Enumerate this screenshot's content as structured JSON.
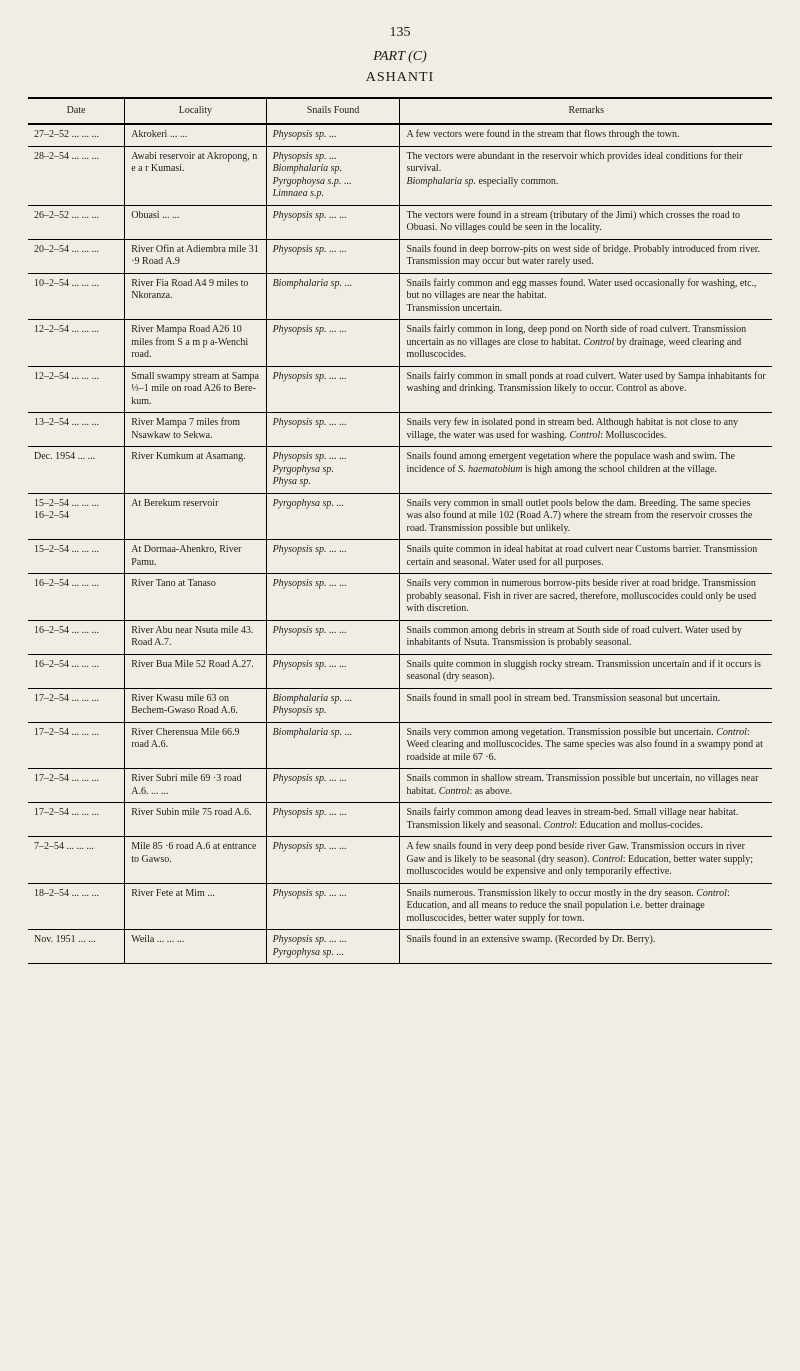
{
  "page_number": "135",
  "part_title": "PART (C)",
  "section_title": "ASHANTI",
  "headers": {
    "date": "Date",
    "locality": "Locality",
    "snails": "Snails Found",
    "remarks": "Remarks"
  },
  "rows": [
    {
      "date": "27–2–52 ...   ...   ...",
      "locality": "Akrokeri   ...   ...",
      "snails_html": "<span class='italic'>Physopsis sp.</span>   ...",
      "remarks": "A few vectors were found in the stream that flows through the town."
    },
    {
      "date": "28–2–54 ...   ...   ...",
      "locality": "Awabi reservoir at Akropong, n e a r Kumasi.",
      "snails_html": "<span class='italic'>Physopsis sp.</span> ...<br><span class='italic'>Biomphalaria sp.</span><br><span class='italic'>Pyrgophoysa s.p.</span> ...<br><span class='italic'>Limnaea s.p.</span>",
      "remarks_html": "The vectors were abundant in the reservoir which provides ideal conditions for their survival.<br><span class='italic'>Biomphalaria sp.</span> especially common."
    },
    {
      "date": "26–2–52 ...   ...   ...",
      "locality": "Obuasi   ...   ...",
      "snails_html": "<span class='italic'>Physopsis sp.</span> ...   ...",
      "remarks": "The vectors were found in a stream (tributary of the Jimi) which crosses the road to Obuasi. No villages could be seen in the locality."
    },
    {
      "date": "20–2–54 ...   ...   ...",
      "locality": "River Ofin at Adiembra mile 31 ·9 Road A.9",
      "snails_html": "<span class='italic'>Physopsis sp.</span> ...   ...",
      "remarks": "Snails found in deep borrow-pits on west side of bridge. Probably introduced from river. Transmission may occur but water rarely used."
    },
    {
      "date": "10–2–54 ...   ...   ...",
      "locality": "River Fia Road A4 9 miles to Nkoranza.",
      "snails_html": "<span class='italic'>Biomphalaria sp.</span>   ...",
      "remarks": "Snails fairly common and egg masses found. Water used occasionally for washing, etc., but no villages are near the habitat.\nTransmission uncertain."
    },
    {
      "date": "12–2–54 ...   ...   ...",
      "locality": "River Mampa Road A26 10 miles from S a m p a-Wenchi road.",
      "snails_html": "<span class='italic'>Physopsis sp.</span> ...   ...",
      "remarks_html": "Snails fairly common in long, deep pond on North side of road culvert. Transmission uncertain as no villages are close to habitat. <span class='italic'>Control</span> by drainage, weed clearing and molluscocides."
    },
    {
      "date": "12–2–54 ...   ...   ...",
      "locality": "Small swampy stream at Sampa ⅓–1 mile on road A26 to Bere-kum.",
      "snails_html": "<span class='italic'>Physopsis sp.</span> ...   ...",
      "remarks": "Snails fairly common in small ponds at road culvert. Water used by Sampa inhabitants for washing and drinking. Transmission likely to occur. Control as above."
    },
    {
      "date": "13–2–54 ...   ...   ...",
      "locality": "River Mampa 7 miles from Nsawkaw to Sekwa.",
      "snails_html": "<span class='italic'>Physopsis sp.</span> ...   ...",
      "remarks_html": "Snails very few in isolated pond in stream bed. Although habitat is not close to any village, the water was used for washing. <span class='italic'>Control</span>: Molluscocides."
    },
    {
      "date": "Dec. 1954   ...   ...",
      "locality": "River Kumkum at Asamang.",
      "snails_html": "<span class='italic'>Physopsis sp.</span> ...   ...<br><span class='italic'>Pyrgophysa sp.</span><br><span class='italic'>Physa sp.</span>",
      "remarks_html": "Snails found among emergent vegetation where the populace wash and swim. The incidence of <span class='italic'>S. haematobium</span> is high among the school children at the village."
    },
    {
      "date": "15–2–54 ...   ...   ...\n16–2–54",
      "locality": "At Berekum reservoir",
      "snails_html": "<span class='italic'>Pyrgophysa sp.</span>   ...",
      "remarks": "Snails very common in small outlet pools below the dam. Breeding. The same species was also found at mile 102 (Road A.7) where the stream from the reservoir crosses the road. Transmission possible but unlikely."
    },
    {
      "date": "15–2–54 ...   ...   ...",
      "locality": "At Dormaa-Ahenkro, River Pamu.",
      "snails_html": "<span class='italic'>Physopsis sp.</span> ...   ...",
      "remarks": "Snails quite common in ideal habitat at road culvert near Customs barrier. Transmission certain and seasonal. Water used for all purposes."
    },
    {
      "date": "16–2–54 ...   ...   ...",
      "locality": "River Tano at Tanaso",
      "snails_html": "<span class='italic'>Physopsis sp.</span> ...   ...",
      "remarks": "Snails very common in numerous borrow-pits beside river at road bridge. Transmission probably seasonal. Fish in river are sacred, therefore, molluscocides could only be used with discretion."
    },
    {
      "date": "16–2–54 ...   ...   ...",
      "locality": "River Abu near Nsuta mile 43. Road A.7.",
      "snails_html": "<span class='italic'>Physopsis sp.</span> ...   ...",
      "remarks": "Snails common among debris in stream at South side of road culvert. Water used by inhabitants of Nsuta. Transmission is probably seasonal."
    },
    {
      "date": "16–2–54 ...   ...   ...",
      "locality": "River Bua Mile 52 Road A.27.",
      "snails_html": "<span class='italic'>Physopsis sp.</span> ...   ...",
      "remarks": "Snails quite common in sluggish rocky stream. Transmission uncertain and if it occurs is seasonal (dry season)."
    },
    {
      "date": "17–2–54 ...   ...   ...",
      "locality": "River Kwasu mile 63 on Bechem-Gwaso Road A.6.",
      "snails_html": "<span class='italic'>Biomphalaria sp.</span>   ...<br><span class='italic'>Physopsis sp.</span>",
      "remarks": "Snails found in small pool in stream bed. Transmission seasonal but uncertain."
    },
    {
      "date": "17–2–54 ...   ...   ...",
      "locality": "River Cherensua Mile 66.9 road A.6.",
      "snails_html": "<span class='italic'>Biomphalaria sp.</span>   ...",
      "remarks_html": "Snails very common among vegetation. Transmission possible but uncertain. <span class='italic'>Control</span>: Weed clearing and molluscocides. The same species was also found in a swampy pond at roadside at mile 67 ·6."
    },
    {
      "date": "17–2–54 ...   ...   ...",
      "locality": "River Subri mile 69 ·3 road A.6.   ...   ...",
      "snails_html": "<span class='italic'>Physopsis sp.</span> ...   ...",
      "remarks_html": "Snails common in shallow stream. Transmission possible but uncertain, no villages near habitat. <span class='italic'>Control</span>: as above."
    },
    {
      "date": "17–2–54 ...   ...   ...",
      "locality": "River Subin mile 75 road A.6.",
      "snails_html": "<span class='italic'>Physopsis sp.</span> ...   ...",
      "remarks_html": "Snails fairly common among dead leaves in stream-bed. Small village near habitat. Transmission likely and seasonal. <span class='italic'>Control</span>: Education and mollus-cocides."
    },
    {
      "date": "7–2–54 ...   ...   ...",
      "locality": "Mile 85 ·6 road A.6 at entrance to Gawso.",
      "snails_html": "<span class='italic'>Physopsis sp.</span> ...   ...",
      "remarks_html": "A few snails found in very deep pond beside river Gaw. Transmission occurs in river Gaw and is likely to be seasonal (dry season). <span class='italic'>Control</span>: Education, better water supply; molluscocides would be expensive and only temporarily effective."
    },
    {
      "date": "18–2–54 ...   ...   ...",
      "locality": "River Fete at Mim ...",
      "snails_html": "<span class='italic'>Physopsis sp.</span> ...   ...",
      "remarks_html": "Snails numerous. Transmission likely to occur mostly in the dry season. <span class='italic'>Control</span>: Education, and all means to reduce the snail population i.e. better drainage molluscocides, better water supply for town."
    },
    {
      "date": "Nov. 1951   ...   ...",
      "locality": "Weila ...   ...   ...",
      "snails_html": "<span class='italic'>Physopsis sp.</span> ...   ...<br><span class='italic'>Pyrgophysa sp.</span>   ...",
      "remarks": "Snails found in an extensive swamp. (Recorded by Dr. Berry)."
    }
  ]
}
